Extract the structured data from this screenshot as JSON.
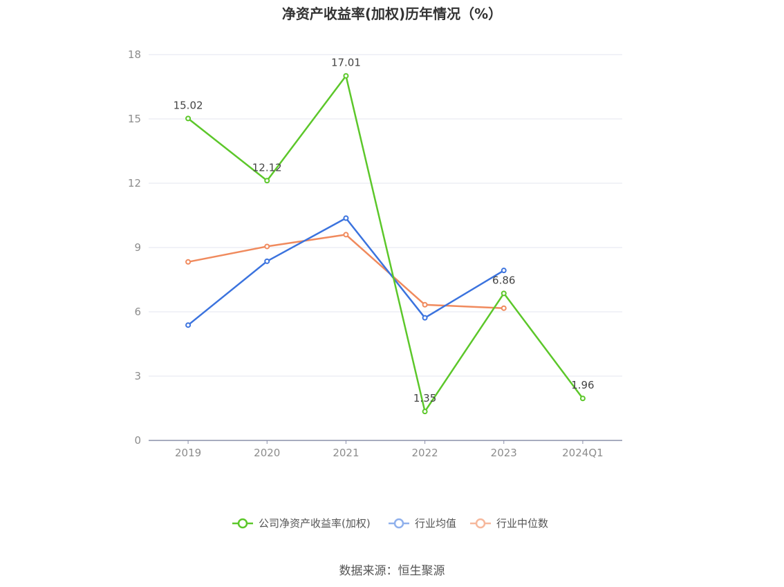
{
  "chart_data": {
    "type": "line",
    "title": "净资产收益率(加权)历年情况（%）",
    "categories": [
      "2019",
      "2020",
      "2021",
      "2022",
      "2023",
      "2024Q1"
    ],
    "ylim": [
      0,
      18
    ],
    "yticks": [
      0,
      3,
      6,
      9,
      12,
      15,
      18
    ],
    "grid": true,
    "legend_position": "bottom-center",
    "series": [
      {
        "name": "公司净资产收益率(加权)",
        "color": "#5cc72a",
        "values": [
          15.02,
          12.12,
          17.01,
          1.35,
          6.86,
          1.96
        ],
        "labels": [
          "15.02",
          "12.12",
          "17.01",
          "1.35",
          "6.86",
          "1.96"
        ]
      },
      {
        "name": "行业均值",
        "color": "#3b73de",
        "legend_color": "#8fb0ec",
        "values": [
          5.38,
          8.36,
          10.37,
          5.72,
          7.93,
          null
        ]
      },
      {
        "name": "行业中位数",
        "color": "#f08a5d",
        "legend_color": "#f6b89c",
        "values": [
          8.33,
          9.05,
          9.6,
          6.33,
          6.17,
          null
        ]
      }
    ]
  },
  "source": "数据来源：恒生聚源"
}
